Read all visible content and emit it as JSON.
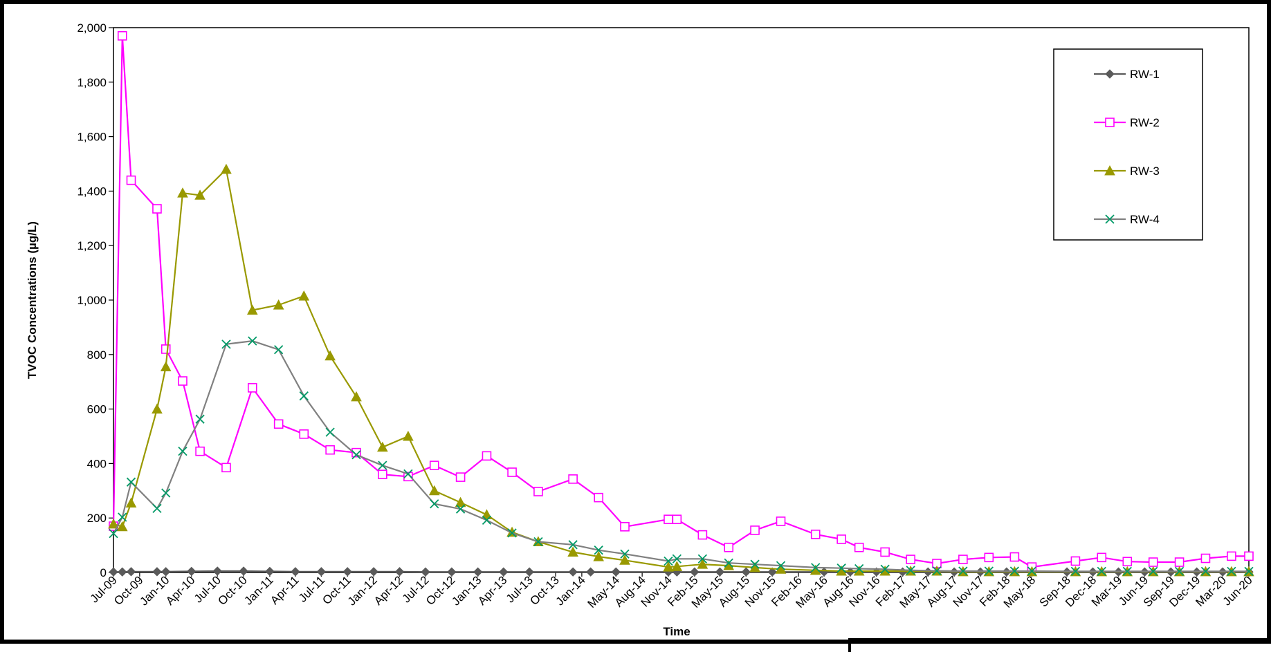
{
  "chart_data": {
    "type": "line",
    "xlabel": "Time",
    "ylabel": "TVOC Concentrations (µg/L)",
    "ylim": [
      0,
      2000
    ],
    "yticks": [
      "0",
      "200",
      "400",
      "600",
      "800",
      "1,000",
      "1,200",
      "1,400",
      "1,600",
      "1,800",
      "2,000"
    ],
    "ytick_values": [
      0,
      200,
      400,
      600,
      800,
      1000,
      1200,
      1400,
      1600,
      1800,
      2000
    ],
    "xlim": [
      "2009-07-01",
      "2020-06-01"
    ],
    "xtick_labels": [
      "Jul-09",
      "Oct-09",
      "Jan-10",
      "Apr-10",
      "Jul-10",
      "Oct-10",
      "Jan-11",
      "Apr-11",
      "Jul-11",
      "Oct-11",
      "Jan-12",
      "Apr-12",
      "Jul-12",
      "Oct-12",
      "Jan-13",
      "Apr-13",
      "Jul-13",
      "Oct-13",
      "Jan-14",
      "May-14",
      "Aug-14",
      "Nov-14",
      "Feb-15",
      "May-15",
      "Aug-15",
      "Nov-15",
      "Feb-16",
      "May-16",
      "Aug-16",
      "Nov-16",
      "Feb-17",
      "May-17",
      "Aug-17",
      "Nov-17",
      "Feb-18",
      "May-18",
      "Sep-18",
      "Dec-18",
      "Mar-19",
      "Jun-19",
      "Sep-19",
      "Dec-19",
      "Mar-20",
      "Jun-20"
    ],
    "xtick_dates": [
      "2009-07-01",
      "2009-10-01",
      "2010-01-01",
      "2010-04-01",
      "2010-07-01",
      "2010-10-01",
      "2011-01-01",
      "2011-04-01",
      "2011-07-01",
      "2011-10-01",
      "2012-01-01",
      "2012-04-01",
      "2012-07-01",
      "2012-10-01",
      "2013-01-01",
      "2013-04-01",
      "2013-07-01",
      "2013-10-01",
      "2014-01-01",
      "2014-05-01",
      "2014-08-01",
      "2014-11-01",
      "2015-02-01",
      "2015-05-01",
      "2015-08-01",
      "2015-11-01",
      "2016-02-01",
      "2016-05-01",
      "2016-08-01",
      "2016-11-01",
      "2017-02-01",
      "2017-05-01",
      "2017-08-01",
      "2017-11-01",
      "2018-02-01",
      "2018-05-01",
      "2018-09-01",
      "2018-12-01",
      "2019-03-01",
      "2019-06-01",
      "2019-09-01",
      "2019-12-01",
      "2020-03-01",
      "2020-06-01"
    ],
    "grid": false,
    "legend_position": "top-right",
    "series": [
      {
        "name": "RW-1",
        "color": "#5A5A5A",
        "marker": "diamond",
        "x": [
          "2009-07-01",
          "2009-08-01",
          "2009-09-01",
          "2009-12-01",
          "2010-01-01",
          "2010-04-01",
          "2010-07-01",
          "2010-10-01",
          "2011-01-01",
          "2011-04-01",
          "2011-07-01",
          "2011-10-01",
          "2012-01-01",
          "2012-04-01",
          "2012-07-01",
          "2012-10-01",
          "2013-01-01",
          "2013-04-01",
          "2013-07-01",
          "2013-12-01",
          "2014-02-01",
          "2014-05-01",
          "2014-11-01",
          "2014-12-01",
          "2015-02-01",
          "2015-05-01",
          "2015-08-01",
          "2015-11-01",
          "2016-05-01",
          "2016-08-01",
          "2016-11-01",
          "2017-02-01",
          "2017-05-01",
          "2017-08-01",
          "2017-11-01",
          "2018-02-01",
          "2018-05-01",
          "2018-09-01",
          "2018-12-01",
          "2019-03-01",
          "2019-06-01",
          "2019-09-01",
          "2019-12-01",
          "2020-03-01",
          "2020-06-01"
        ],
        "y": [
          2,
          2,
          3,
          3,
          3,
          4,
          5,
          5,
          4,
          3,
          3,
          3,
          3,
          3,
          2,
          2,
          2,
          2,
          2,
          2,
          2,
          2,
          2,
          2,
          2,
          2,
          2,
          2,
          2,
          2,
          2,
          2,
          2,
          2,
          2,
          2,
          2,
          2,
          2,
          2,
          2,
          2,
          2,
          2,
          2
        ]
      },
      {
        "name": "RW-2",
        "color": "#FF00FF",
        "marker": "square",
        "x": [
          "2009-07-01",
          "2009-08-01",
          "2009-09-01",
          "2009-12-01",
          "2010-01-01",
          "2010-03-01",
          "2010-05-01",
          "2010-08-01",
          "2010-11-01",
          "2011-02-01",
          "2011-05-01",
          "2011-08-01",
          "2011-11-01",
          "2012-02-01",
          "2012-05-01",
          "2012-08-01",
          "2012-11-01",
          "2013-02-01",
          "2013-05-01",
          "2013-08-01",
          "2013-12-01",
          "2014-03-01",
          "2014-06-01",
          "2014-11-01",
          "2014-12-01",
          "2015-03-01",
          "2015-06-01",
          "2015-09-01",
          "2015-12-01",
          "2016-04-01",
          "2016-07-01",
          "2016-09-01",
          "2016-12-01",
          "2017-03-01",
          "2017-06-01",
          "2017-09-01",
          "2017-12-01",
          "2018-03-01",
          "2018-05-01",
          "2018-10-01",
          "2019-01-01",
          "2019-04-01",
          "2019-07-01",
          "2019-10-01",
          "2020-01-01",
          "2020-04-01",
          "2020-06-01"
        ],
        "y": [
          170,
          1970,
          1440,
          1335,
          820,
          703,
          445,
          385,
          678,
          545,
          508,
          450,
          440,
          360,
          352,
          393,
          350,
          428,
          368,
          297,
          343,
          275,
          168,
          195,
          195,
          138,
          92,
          155,
          188,
          140,
          122,
          92,
          75,
          48,
          33,
          48,
          55,
          57,
          20,
          42,
          55,
          40,
          38,
          38,
          52,
          60,
          60
        ]
      },
      {
        "name": "RW-3",
        "color": "#999900",
        "marker": "triangle",
        "x": [
          "2009-07-01",
          "2009-08-01",
          "2009-09-01",
          "2009-12-01",
          "2010-01-01",
          "2010-03-01",
          "2010-05-01",
          "2010-08-01",
          "2010-11-01",
          "2011-02-01",
          "2011-05-01",
          "2011-08-01",
          "2011-11-01",
          "2012-02-01",
          "2012-05-01",
          "2012-08-01",
          "2012-11-01",
          "2013-02-01",
          "2013-05-01",
          "2013-08-01",
          "2013-12-01",
          "2014-03-01",
          "2014-06-01",
          "2014-11-01",
          "2014-12-01",
          "2015-03-01",
          "2015-06-01",
          "2015-09-01",
          "2015-12-01",
          "2016-04-01",
          "2016-07-01",
          "2016-09-01",
          "2016-12-01",
          "2017-03-01",
          "2017-06-01",
          "2017-09-01",
          "2017-12-01",
          "2018-03-01",
          "2018-05-01",
          "2018-10-01",
          "2019-01-01",
          "2019-04-01",
          "2019-07-01",
          "2019-10-01",
          "2020-01-01",
          "2020-04-01",
          "2020-06-01"
        ],
        "y": [
          178,
          168,
          255,
          600,
          755,
          1393,
          1385,
          1480,
          963,
          982,
          1015,
          795,
          645,
          460,
          500,
          300,
          257,
          212,
          148,
          113,
          75,
          58,
          45,
          20,
          22,
          30,
          25,
          18,
          12,
          8,
          5,
          5,
          5,
          5,
          5,
          3,
          3,
          3,
          3,
          3,
          3,
          3,
          3,
          3,
          3,
          3,
          3
        ]
      },
      {
        "name": "RW-4",
        "color": "#808080",
        "marker": "x",
        "markerColor": "#009966",
        "x": [
          "2009-07-01",
          "2009-08-01",
          "2009-09-01",
          "2009-12-01",
          "2010-01-01",
          "2010-03-01",
          "2010-05-01",
          "2010-08-01",
          "2010-11-01",
          "2011-02-01",
          "2011-05-01",
          "2011-08-01",
          "2011-11-01",
          "2012-02-01",
          "2012-05-01",
          "2012-08-01",
          "2012-11-01",
          "2013-02-01",
          "2013-05-01",
          "2013-08-01",
          "2013-12-01",
          "2014-03-01",
          "2014-06-01",
          "2014-11-01",
          "2014-12-01",
          "2015-03-01",
          "2015-06-01",
          "2015-09-01",
          "2015-12-01",
          "2016-04-01",
          "2016-07-01",
          "2016-09-01",
          "2016-12-01",
          "2017-03-01",
          "2017-06-01",
          "2017-09-01",
          "2017-12-01",
          "2018-03-01",
          "2018-05-01",
          "2018-10-01",
          "2019-01-01",
          "2019-04-01",
          "2019-07-01",
          "2019-10-01",
          "2020-01-01",
          "2020-04-01",
          "2020-06-01"
        ],
        "y": [
          143,
          203,
          332,
          235,
          292,
          445,
          563,
          838,
          850,
          818,
          648,
          515,
          432,
          393,
          362,
          252,
          233,
          192,
          145,
          113,
          102,
          82,
          68,
          42,
          50,
          50,
          35,
          30,
          25,
          18,
          16,
          14,
          12,
          8,
          6,
          5,
          5,
          5,
          5,
          4,
          4,
          4,
          4,
          4,
          4,
          4,
          4
        ]
      }
    ]
  }
}
